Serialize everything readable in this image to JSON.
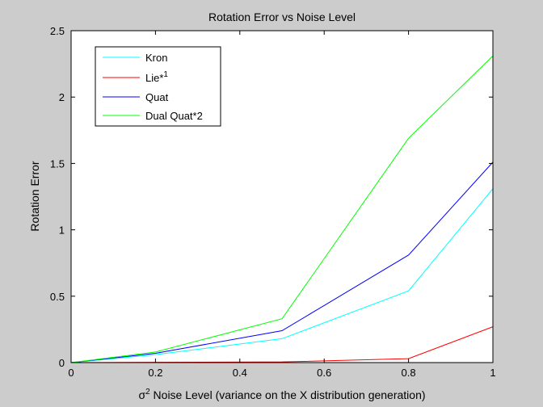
{
  "chart_data": {
    "type": "line",
    "title": "Rotation Error vs Noise Level",
    "xlabel_symbol": "σ",
    "xlabel_sup": "2",
    "xlabel": " Noise Level (variance on the X distribution generation)",
    "ylabel": "Rotation Error",
    "xlim": [
      0,
      1
    ],
    "ylim": [
      0,
      2.5
    ],
    "x_ticks": [
      0,
      0.2,
      0.4,
      0.6,
      0.8,
      1
    ],
    "x_tick_labels": [
      "0",
      "0.2",
      "0.4",
      "0.6",
      "0.8",
      "1"
    ],
    "y_ticks": [
      0,
      0.5,
      1,
      1.5,
      2,
      2.5
    ],
    "y_tick_labels": [
      "0",
      "0.5",
      "1",
      "1.5",
      "2",
      "2.5"
    ],
    "grid": false,
    "legend_position": "top-left",
    "x": [
      0,
      0.2,
      0.5,
      0.8,
      1
    ],
    "series": [
      {
        "name": "Kron",
        "name_sup": "",
        "color": "#00ffff",
        "values": [
          0,
          0.06,
          0.18,
          0.54,
          1.31
        ]
      },
      {
        "name": "Lie*",
        "name_sup": "1",
        "color": "#ff0000",
        "values": [
          0,
          0.002,
          0.005,
          0.03,
          0.27
        ]
      },
      {
        "name": "Quat",
        "name_sup": "",
        "color": "#0000ff",
        "values": [
          0,
          0.07,
          0.24,
          0.81,
          1.51
        ]
      },
      {
        "name": "Dual Quat*2",
        "name_sup": "",
        "color": "#00ff00",
        "values": [
          0,
          0.08,
          0.33,
          1.69,
          2.31
        ]
      }
    ]
  }
}
